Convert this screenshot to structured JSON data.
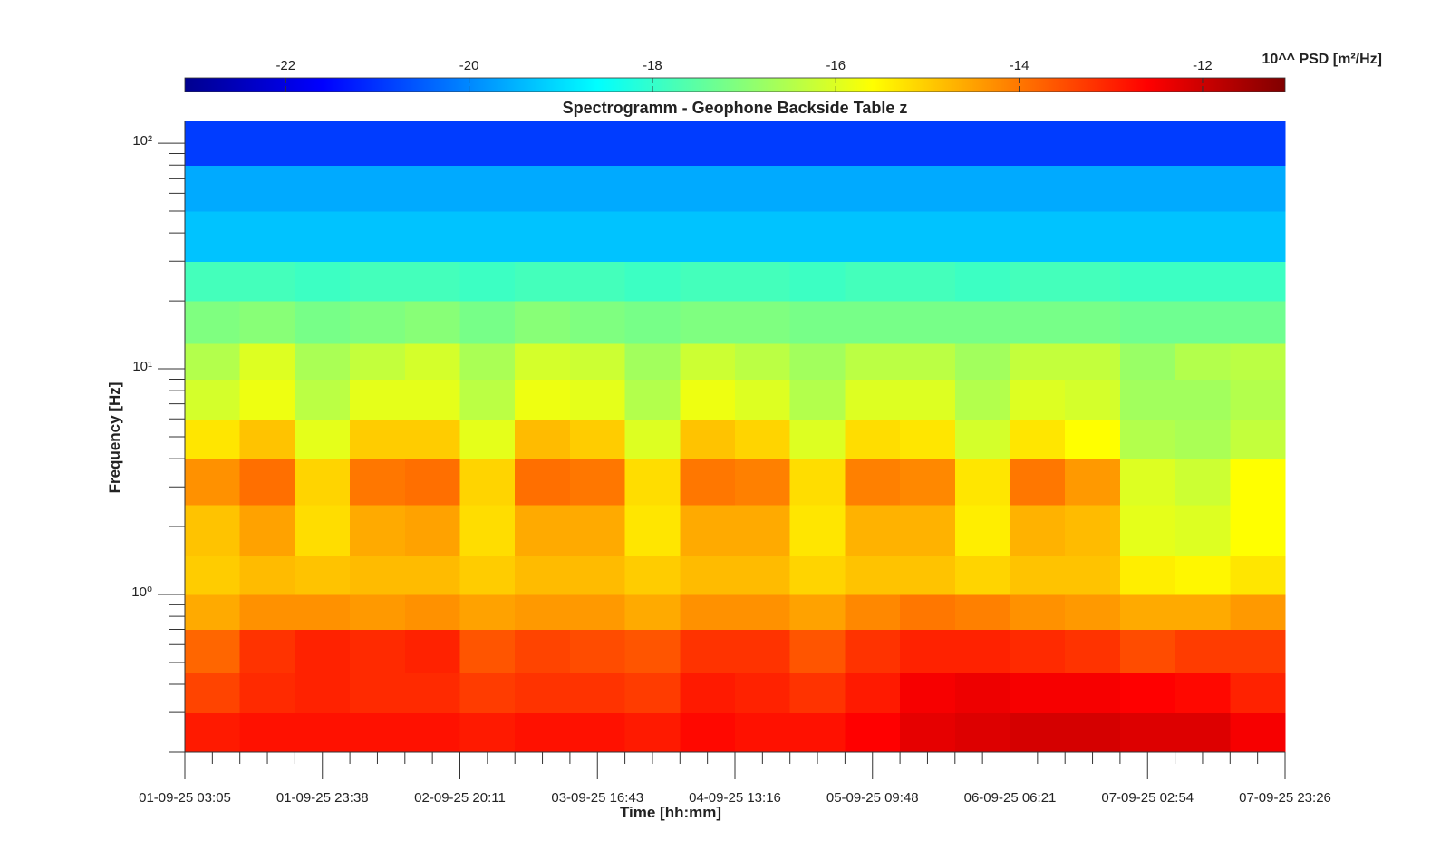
{
  "chart_data": {
    "type": "heatmap",
    "title": "Spectrogramm - Geophone Backside Table z",
    "x_label": "Time [hh:mm]",
    "y_label": "Frequency [Hz]",
    "colorbar_label": "10^^ PSD [m²/Hz]",
    "colormap": "jet",
    "y_scale": "log",
    "xlim": [
      0,
      164.4
    ],
    "ylim": [
      0.2,
      125
    ],
    "clim": [
      -23.1,
      -11.1
    ],
    "cticks": [
      -22,
      -20,
      -18,
      -16,
      -14,
      -12
    ],
    "xticks": [
      {
        "value": 0,
        "label": "01-09-25 03:05"
      },
      {
        "value": 20.55,
        "label": "01-09-25 23:38"
      },
      {
        "value": 41.1,
        "label": "02-09-25 20:11"
      },
      {
        "value": 61.65,
        "label": "03-09-25 16:43"
      },
      {
        "value": 82.2,
        "label": "04-09-25 13:16"
      },
      {
        "value": 102.75,
        "label": "05-09-25 09:48"
      },
      {
        "value": 123.3,
        "label": "06-09-25 06:21"
      },
      {
        "value": 143.85,
        "label": "07-09-25 02:54"
      },
      {
        "value": 164.4,
        "label": "07-09-25 23:26"
      }
    ],
    "xminor": [
      4.11,
      8.22,
      12.33,
      16.44,
      24.66,
      28.77,
      32.88,
      36.99,
      45.21,
      49.32,
      53.43,
      57.54,
      65.76,
      69.87,
      73.98,
      78.09,
      86.31,
      90.42,
      94.53,
      98.64,
      106.86,
      110.97,
      115.08,
      119.19,
      127.41,
      131.52,
      135.63,
      139.74,
      147.96,
      152.07,
      156.18,
      160.29
    ],
    "yticks": [
      {
        "value": 1,
        "label": "10⁰"
      },
      {
        "value": 10,
        "label": "10¹"
      },
      {
        "value": 100,
        "label": "10²"
      }
    ],
    "yminor": [
      0.2,
      0.3,
      0.4,
      0.5,
      0.6,
      0.7,
      0.8,
      0.9,
      2,
      3,
      4,
      5,
      6,
      7,
      8,
      9,
      20,
      30,
      40,
      50,
      60,
      70,
      80,
      90
    ],
    "x_edges": [
      0,
      8.22,
      16.44,
      24.66,
      32.88,
      41.1,
      49.32,
      57.54,
      65.76,
      73.98,
      82.2,
      90.42,
      98.64,
      106.86,
      115.08,
      123.3,
      131.52,
      139.74,
      147.96,
      156.18,
      164.4
    ],
    "y_edges": [
      0.2,
      0.3,
      0.45,
      0.7,
      1,
      1.5,
      2.5,
      4,
      6,
      9,
      13,
      20,
      30,
      50,
      80,
      125
    ],
    "z": [
      [
        -12.9,
        -12.8,
        -12.8,
        -12.8,
        -12.8,
        -12.9,
        -12.8,
        -12.8,
        -12.9,
        -12.7,
        -12.8,
        -12.8,
        -12.6,
        -12.3,
        -12.2,
        -12.1,
        -12.1,
        -12.2,
        -12.2,
        -12.5
      ],
      [
        -13.4,
        -13.1,
        -13.0,
        -13.1,
        -13.1,
        -13.3,
        -13.2,
        -13.2,
        -13.3,
        -12.9,
        -13.0,
        -13.2,
        -12.9,
        -12.5,
        -12.4,
        -12.5,
        -12.5,
        -12.6,
        -12.7,
        -13.0
      ],
      [
        -13.8,
        -13.2,
        -13.0,
        -13.1,
        -13.0,
        -13.6,
        -13.4,
        -13.5,
        -13.6,
        -13.2,
        -13.2,
        -13.6,
        -13.2,
        -13.0,
        -13.0,
        -13.1,
        -13.2,
        -13.5,
        -13.3,
        -13.3
      ],
      [
        -14.6,
        -14.3,
        -14.3,
        -14.4,
        -14.3,
        -14.5,
        -14.4,
        -14.4,
        -14.6,
        -14.3,
        -14.3,
        -14.5,
        -14.2,
        -14.0,
        -14.1,
        -14.3,
        -14.4,
        -14.6,
        -14.6,
        -14.4
      ],
      [
        -15.0,
        -14.8,
        -14.9,
        -14.8,
        -14.8,
        -15.0,
        -14.8,
        -14.8,
        -15.0,
        -14.8,
        -14.8,
        -15.1,
        -14.9,
        -14.9,
        -15.1,
        -14.9,
        -14.9,
        -15.4,
        -15.5,
        -15.3
      ],
      [
        -14.9,
        -14.5,
        -15.2,
        -14.6,
        -14.5,
        -15.2,
        -14.6,
        -14.6,
        -15.3,
        -14.6,
        -14.6,
        -15.3,
        -14.7,
        -14.7,
        -15.4,
        -14.7,
        -14.8,
        -15.9,
        -16.0,
        -15.6
      ],
      [
        -14.3,
        -13.9,
        -15.1,
        -14.0,
        -13.9,
        -15.1,
        -13.9,
        -14.0,
        -15.2,
        -14.0,
        -14.1,
        -15.2,
        -14.1,
        -14.2,
        -15.3,
        -14.0,
        -14.4,
        -16.0,
        -16.2,
        -15.6
      ],
      [
        -15.3,
        -14.9,
        -15.9,
        -15.0,
        -15.0,
        -15.9,
        -14.8,
        -15.0,
        -16.0,
        -14.9,
        -15.1,
        -16.0,
        -15.2,
        -15.3,
        -16.1,
        -15.3,
        -15.6,
        -16.5,
        -16.6,
        -16.3
      ],
      [
        -16.1,
        -15.8,
        -16.4,
        -15.9,
        -15.9,
        -16.4,
        -15.8,
        -15.9,
        -16.5,
        -15.8,
        -16.0,
        -16.5,
        -16.0,
        -16.0,
        -16.5,
        -16.0,
        -16.1,
        -16.7,
        -16.7,
        -16.5
      ],
      [
        -16.5,
        -16.0,
        -16.6,
        -16.3,
        -16.1,
        -16.6,
        -16.1,
        -16.2,
        -16.7,
        -16.2,
        -16.4,
        -16.7,
        -16.4,
        -16.4,
        -16.7,
        -16.3,
        -16.3,
        -16.8,
        -16.5,
        -16.4
      ],
      [
        -17.1,
        -17.0,
        -17.2,
        -17.1,
        -17.0,
        -17.2,
        -17.0,
        -17.1,
        -17.2,
        -17.1,
        -17.1,
        -17.2,
        -17.2,
        -17.2,
        -17.2,
        -17.2,
        -17.2,
        -17.3,
        -17.3,
        -17.3
      ],
      [
        -17.8,
        -17.8,
        -17.9,
        -17.8,
        -17.8,
        -17.9,
        -17.8,
        -17.8,
        -17.9,
        -17.8,
        -17.8,
        -17.9,
        -17.8,
        -17.8,
        -17.9,
        -17.8,
        -17.8,
        -17.9,
        -17.9,
        -17.9
      ],
      [
        -19.3,
        -19.3,
        -19.3,
        -19.3,
        -19.3,
        -19.3,
        -19.3,
        -19.3,
        -19.3,
        -19.3,
        -19.3,
        -19.3,
        -19.3,
        -19.3,
        -19.3,
        -19.3,
        -19.3,
        -19.3,
        -19.3,
        -19.3
      ],
      [
        -19.6,
        -19.6,
        -19.6,
        -19.6,
        -19.6,
        -19.6,
        -19.6,
        -19.6,
        -19.6,
        -19.6,
        -19.6,
        -19.6,
        -19.6,
        -19.6,
        -19.6,
        -19.6,
        -19.6,
        -19.6,
        -19.6,
        -19.6
      ],
      [
        -20.9,
        -20.9,
        -20.9,
        -20.9,
        -20.9,
        -20.9,
        -20.9,
        -20.9,
        -20.9,
        -20.9,
        -20.9,
        -20.9,
        -20.9,
        -20.9,
        -20.9,
        -20.9,
        -20.9,
        -20.9,
        -20.9,
        -20.9
      ]
    ]
  }
}
